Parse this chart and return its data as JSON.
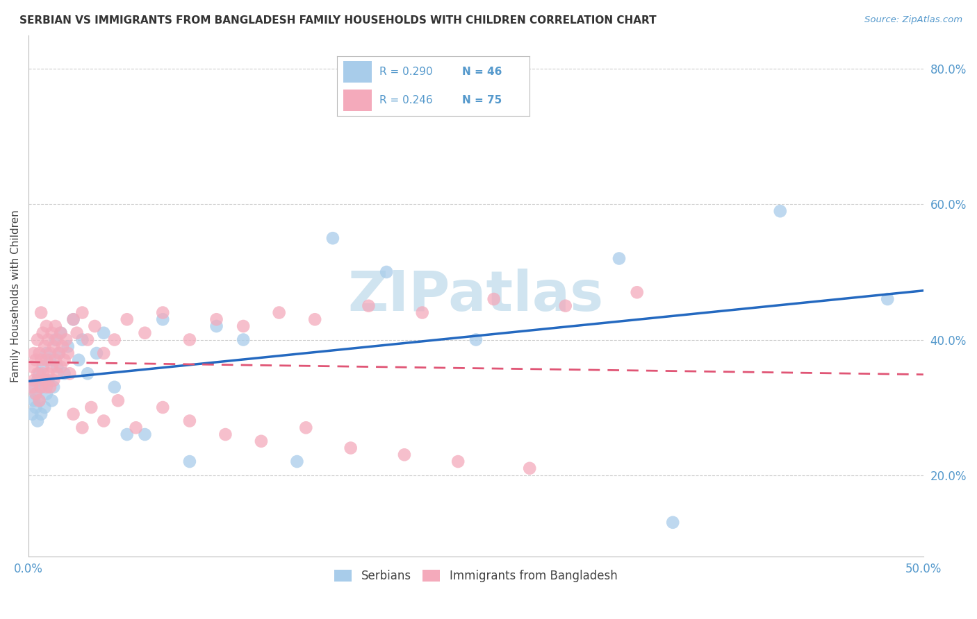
{
  "title": "SERBIAN VS IMMIGRANTS FROM BANGLADESH FAMILY HOUSEHOLDS WITH CHILDREN CORRELATION CHART",
  "source": "Source: ZipAtlas.com",
  "ylabel": "Family Households with Children",
  "xlim": [
    0.0,
    0.5
  ],
  "ylim": [
    0.08,
    0.85
  ],
  "xtick_positions": [
    0.0,
    0.1,
    0.2,
    0.3,
    0.4,
    0.5
  ],
  "xticklabels": [
    "0.0%",
    "",
    "",
    "",
    "",
    "50.0%"
  ],
  "ytick_right_positions": [
    0.2,
    0.4,
    0.6,
    0.8
  ],
  "ytick_right_labels": [
    "20.0%",
    "40.0%",
    "60.0%",
    "80.0%"
  ],
  "series1_label": "Serbians",
  "series2_label": "Immigrants from Bangladesh",
  "color1": "#A8CCEA",
  "color2": "#F4AABB",
  "trendline1_color": "#2469C0",
  "trendline2_color": "#E05575",
  "background_color": "#FFFFFF",
  "grid_color": "#CCCCCC",
  "title_color": "#333333",
  "tick_color": "#5599CC",
  "watermark_text": "ZIPatlas",
  "watermark_color": "#D0E4F0",
  "legend_r1": "R = 0.290",
  "legend_n1": "N = 46",
  "legend_r2": "R = 0.246",
  "legend_n2": "N = 75",
  "serbians_x": [
    0.002,
    0.003,
    0.003,
    0.004,
    0.004,
    0.005,
    0.005,
    0.006,
    0.006,
    0.007,
    0.007,
    0.008,
    0.009,
    0.01,
    0.01,
    0.011,
    0.012,
    0.013,
    0.014,
    0.015,
    0.016,
    0.017,
    0.018,
    0.02,
    0.022,
    0.025,
    0.028,
    0.03,
    0.033,
    0.038,
    0.042,
    0.048,
    0.055,
    0.065,
    0.075,
    0.09,
    0.105,
    0.12,
    0.15,
    0.17,
    0.2,
    0.25,
    0.36,
    0.42,
    0.48,
    0.33
  ],
  "serbians_y": [
    0.29,
    0.31,
    0.33,
    0.3,
    0.32,
    0.34,
    0.28,
    0.31,
    0.35,
    0.29,
    0.33,
    0.36,
    0.3,
    0.32,
    0.38,
    0.34,
    0.37,
    0.31,
    0.33,
    0.4,
    0.36,
    0.38,
    0.41,
    0.35,
    0.39,
    0.43,
    0.37,
    0.4,
    0.35,
    0.38,
    0.41,
    0.33,
    0.26,
    0.26,
    0.43,
    0.22,
    0.42,
    0.4,
    0.22,
    0.55,
    0.5,
    0.4,
    0.13,
    0.59,
    0.46,
    0.52
  ],
  "bangladesh_x": [
    0.002,
    0.002,
    0.003,
    0.003,
    0.004,
    0.004,
    0.005,
    0.005,
    0.006,
    0.006,
    0.007,
    0.007,
    0.007,
    0.008,
    0.008,
    0.009,
    0.009,
    0.01,
    0.01,
    0.01,
    0.011,
    0.011,
    0.012,
    0.012,
    0.013,
    0.013,
    0.014,
    0.014,
    0.015,
    0.015,
    0.016,
    0.016,
    0.017,
    0.018,
    0.018,
    0.019,
    0.02,
    0.021,
    0.022,
    0.023,
    0.025,
    0.027,
    0.03,
    0.033,
    0.037,
    0.042,
    0.048,
    0.055,
    0.065,
    0.075,
    0.09,
    0.105,
    0.12,
    0.14,
    0.16,
    0.19,
    0.22,
    0.26,
    0.3,
    0.34,
    0.025,
    0.03,
    0.035,
    0.042,
    0.05,
    0.06,
    0.075,
    0.09,
    0.11,
    0.13,
    0.155,
    0.18,
    0.21,
    0.24,
    0.28
  ],
  "bangladesh_y": [
    0.36,
    0.33,
    0.38,
    0.34,
    0.37,
    0.32,
    0.4,
    0.35,
    0.38,
    0.31,
    0.44,
    0.37,
    0.33,
    0.41,
    0.35,
    0.39,
    0.34,
    0.42,
    0.37,
    0.33,
    0.4,
    0.35,
    0.38,
    0.33,
    0.41,
    0.36,
    0.39,
    0.34,
    0.42,
    0.37,
    0.4,
    0.35,
    0.38,
    0.41,
    0.36,
    0.39,
    0.37,
    0.4,
    0.38,
    0.35,
    0.43,
    0.41,
    0.44,
    0.4,
    0.42,
    0.38,
    0.4,
    0.43,
    0.41,
    0.44,
    0.4,
    0.43,
    0.42,
    0.44,
    0.43,
    0.45,
    0.44,
    0.46,
    0.45,
    0.47,
    0.29,
    0.27,
    0.3,
    0.28,
    0.31,
    0.27,
    0.3,
    0.28,
    0.26,
    0.25,
    0.27,
    0.24,
    0.23,
    0.22,
    0.21
  ]
}
